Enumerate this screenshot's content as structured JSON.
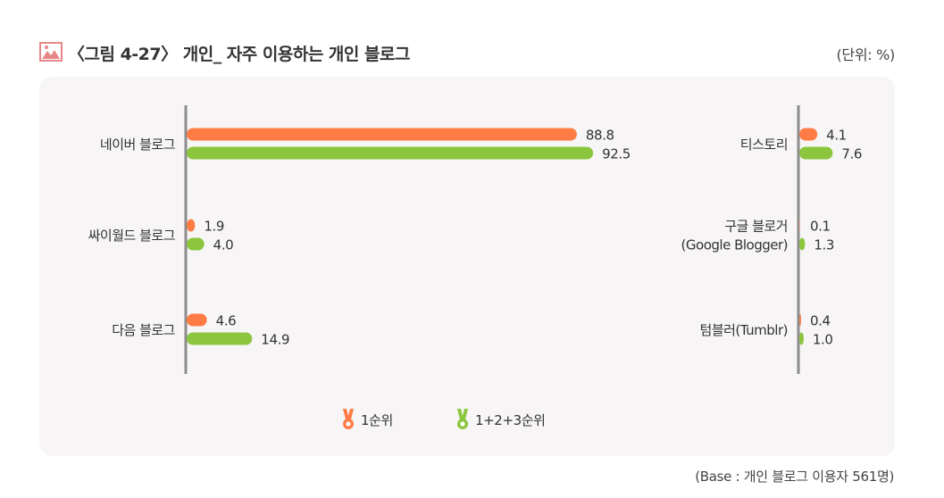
{
  "header": {
    "title": "〈그림 4-27〉 개인_ 자주 이용하는 개인 블로그",
    "unit": "(단위: %)",
    "icon": "image-icon"
  },
  "footer": {
    "base_note": "(Base : 개인 블로그 이용자 561명)"
  },
  "colors": {
    "rank1": "#ff7c45",
    "rank123": "#8cc63f",
    "axis": "#8c8c8c",
    "panel_bg": "#f7f5f5",
    "title_icon": "#e8878a"
  },
  "chart_data": [
    {
      "type": "bar",
      "orientation": "horizontal",
      "categories": [
        "네이버 블로그",
        "싸이월드 블로그",
        "다음 블로그"
      ],
      "series": [
        {
          "name": "1순위",
          "values": [
            88.8,
            1.9,
            4.6
          ]
        },
        {
          "name": "1+2+3순위",
          "values": [
            92.5,
            4.0,
            14.9
          ]
        }
      ],
      "xlim": [
        0,
        100
      ],
      "grid": false,
      "legend": "bottom"
    },
    {
      "type": "bar",
      "orientation": "horizontal",
      "categories": [
        "티스토리",
        "구글 블로거\n(Google Blogger)",
        "텀블러(Tumblr)"
      ],
      "series": [
        {
          "name": "1순위",
          "values": [
            4.1,
            0.1,
            0.4
          ]
        },
        {
          "name": "1+2+3순위",
          "values": [
            7.6,
            1.3,
            1.0
          ]
        }
      ],
      "xlim": [
        0,
        100
      ],
      "grid": false,
      "legend": "bottom"
    }
  ]
}
